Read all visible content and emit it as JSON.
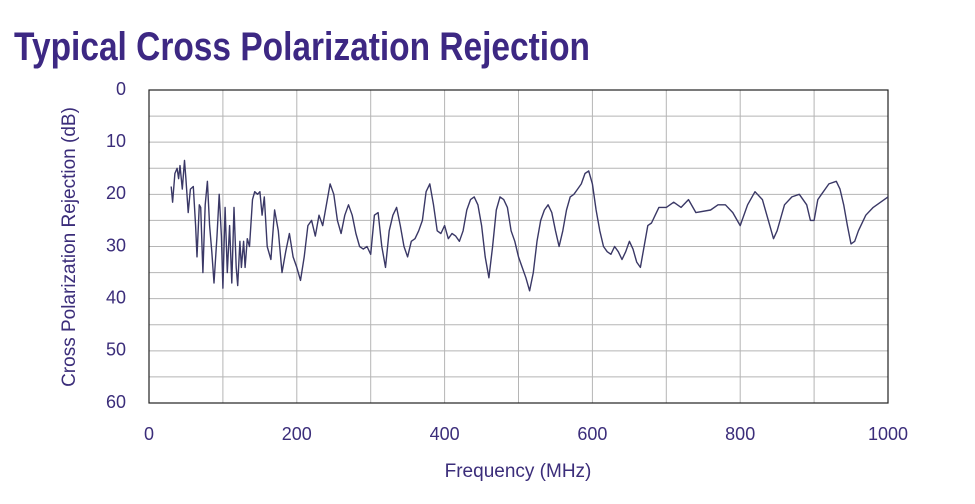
{
  "chart_data": {
    "type": "line",
    "title": "Typical Cross Polarization Rejection",
    "x_label": "Frequency (MHz)",
    "y_label": "Cross Polarization Rejection (dB)",
    "xlim": [
      0,
      1000
    ],
    "xticks": [
      0,
      200,
      400,
      600,
      800,
      1000
    ],
    "minor_xticks": [
      100,
      300,
      500,
      700,
      900
    ],
    "ylim": [
      0,
      60
    ],
    "y_inverted": true,
    "yticks": [
      0,
      10,
      20,
      30,
      40,
      50,
      60
    ],
    "minor_yticks": [
      5,
      15,
      25,
      35,
      45,
      55
    ],
    "grid": true,
    "series": [
      {
        "color": "#3a3866",
        "x": [
          30,
          32,
          35,
          38,
          40,
          42,
          45,
          48,
          50,
          53,
          56,
          60,
          63,
          65,
          68,
          70,
          73,
          76,
          79,
          82,
          85,
          88,
          92,
          95,
          98,
          100,
          103,
          106,
          109,
          112,
          115,
          118,
          120,
          123,
          125,
          128,
          130,
          133,
          136,
          140,
          143,
          147,
          150,
          153,
          156,
          160,
          165,
          170,
          175,
          180,
          185,
          190,
          195,
          200,
          205,
          210,
          215,
          220,
          225,
          230,
          235,
          240,
          245,
          250,
          255,
          260,
          265,
          270,
          275,
          280,
          285,
          290,
          295,
          300,
          305,
          310,
          315,
          320,
          325,
          330,
          335,
          340,
          345,
          350,
          355,
          360,
          365,
          370,
          375,
          380,
          385,
          390,
          395,
          400,
          405,
          410,
          415,
          420,
          425,
          430,
          435,
          440,
          445,
          450,
          455,
          460,
          465,
          470,
          475,
          480,
          485,
          490,
          495,
          500,
          505,
          510,
          515,
          520,
          525,
          530,
          535,
          540,
          545,
          550,
          555,
          560,
          565,
          570,
          575,
          580,
          585,
          590,
          595,
          600,
          605,
          610,
          615,
          620,
          625,
          630,
          635,
          640,
          645,
          650,
          655,
          660,
          665,
          670,
          675,
          680,
          685,
          690,
          700,
          710,
          720,
          730,
          740,
          760,
          770,
          780,
          790,
          800,
          810,
          820,
          830,
          840,
          845,
          850,
          860,
          870,
          880,
          890,
          895,
          900,
          905,
          910,
          920,
          930,
          935,
          940,
          945,
          950,
          955,
          960,
          970,
          980,
          990,
          1000
        ],
        "values": [
          18.5,
          21.5,
          16,
          15,
          17,
          14.5,
          19,
          13.5,
          17,
          23.5,
          19,
          18.5,
          26,
          32,
          22,
          22.5,
          35,
          22,
          17.5,
          26,
          31,
          37,
          28,
          20,
          28,
          38,
          22.5,
          35,
          26,
          37,
          22.5,
          34,
          37.5,
          29,
          34,
          29,
          34,
          28.5,
          30,
          21,
          19.5,
          20,
          19.5,
          24,
          20.5,
          30,
          32.5,
          23,
          27,
          35,
          31,
          27.5,
          32,
          34,
          36.5,
          32,
          26,
          25,
          28,
          24,
          26,
          22,
          18,
          20,
          25,
          27.5,
          24,
          22,
          24,
          27.5,
          30,
          30.5,
          30,
          31.5,
          24,
          23.5,
          30,
          34,
          27,
          24,
          22.5,
          26,
          30,
          32,
          29,
          28.5,
          27,
          25,
          19.5,
          18,
          22,
          27,
          27.5,
          26,
          28.5,
          27.5,
          28,
          29,
          27,
          23,
          21,
          20.5,
          22,
          26,
          32,
          36,
          30,
          23,
          20.5,
          21,
          22.5,
          27,
          29,
          32,
          34,
          36,
          38.5,
          35,
          29,
          25,
          23,
          22,
          23.5,
          27,
          30,
          27,
          23,
          20.5,
          20,
          19,
          18,
          16,
          15.5,
          18,
          23,
          27,
          30,
          31,
          31.5,
          30,
          31,
          32.5,
          31,
          29,
          30.5,
          33,
          34,
          30,
          26,
          25.5,
          24,
          22.5,
          22.5,
          21.5,
          22.5,
          21,
          23.5,
          23,
          22,
          22,
          23.5,
          26,
          22,
          19.5,
          21,
          26,
          28.5,
          27,
          22,
          20.5,
          20,
          22,
          25,
          25,
          21,
          20,
          18,
          17.5,
          19,
          22,
          26,
          29.5,
          29,
          27,
          24,
          22.5,
          21.5,
          20.5
        ]
      }
    ]
  }
}
